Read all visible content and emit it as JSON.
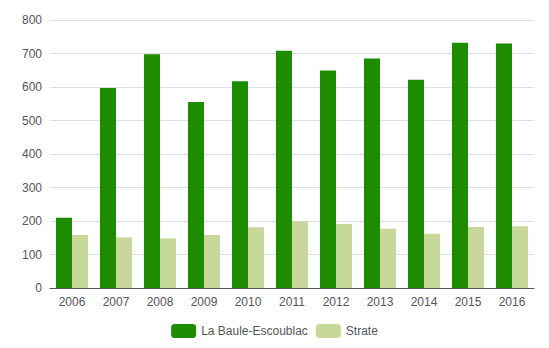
{
  "chart_data": {
    "type": "bar",
    "categories": [
      "2006",
      "2007",
      "2008",
      "2009",
      "2010",
      "2011",
      "2012",
      "2013",
      "2014",
      "2015",
      "2016"
    ],
    "series": [
      {
        "name": "La Baule-Escoublac",
        "color": "#1e8c00",
        "values": [
          210,
          597,
          698,
          555,
          617,
          708,
          649,
          685,
          622,
          732,
          730
        ]
      },
      {
        "name": "Strate",
        "color": "#c8d89a",
        "values": [
          158,
          151,
          148,
          158,
          181,
          199,
          191,
          177,
          162,
          182,
          184
        ]
      }
    ],
    "ylim": [
      0,
      800
    ],
    "yticks": [
      0,
      100,
      200,
      300,
      400,
      500,
      600,
      700,
      800
    ],
    "grid": true,
    "legend": "bottom"
  }
}
